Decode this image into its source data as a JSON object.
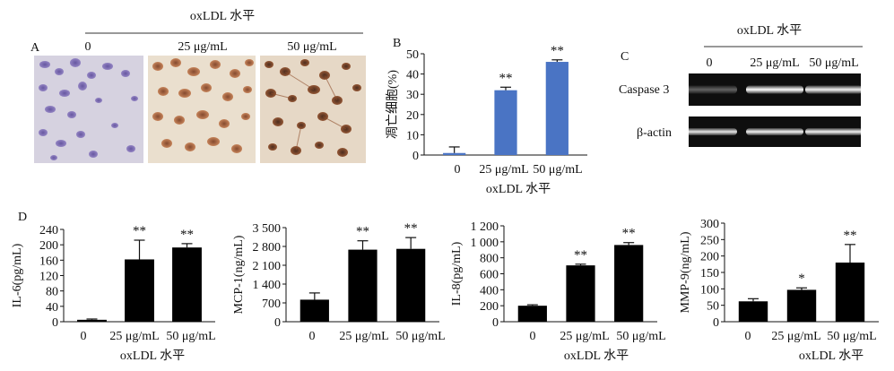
{
  "panel_a": {
    "label": "A",
    "header": "oxLDL 水平",
    "columns": [
      "0",
      "25 μg/mL",
      "50 μg/mL"
    ]
  },
  "panel_c": {
    "label": "C",
    "header": "oxLDL 水平",
    "columns": [
      "0",
      "25 μg/mL",
      "50 μg/mL"
    ],
    "rows": [
      "Caspase 3",
      "β-actin"
    ],
    "band_intensity": {
      "Caspase 3": [
        0.35,
        1.0,
        0.95
      ],
      "β-actin": [
        0.9,
        0.95,
        0.95
      ]
    }
  },
  "panel_d_label": "D",
  "chart_data": [
    {
      "id": "B",
      "panel_label": "B",
      "type": "bar",
      "style": "blue",
      "categories": [
        "0",
        "25 μg/mL",
        "50 μg/mL"
      ],
      "values": [
        1,
        32,
        46
      ],
      "errors": [
        3,
        1.5,
        1
      ],
      "significance": [
        "",
        "**",
        "**"
      ],
      "ylabel": "凋亡细胞(%)",
      "xlabel": "oxLDL 水平",
      "ylim": [
        0,
        50
      ],
      "yticks": [
        "0",
        "10",
        "20",
        "30",
        "40",
        "50"
      ],
      "color": "#4a74c4"
    },
    {
      "id": "IL6",
      "type": "bar",
      "style": "black",
      "categories": [
        "0",
        "25 μg/mL",
        "50 μg/mL"
      ],
      "values": [
        5,
        162,
        193
      ],
      "errors": [
        2,
        50,
        10
      ],
      "significance": [
        "",
        "**",
        "**"
      ],
      "ylabel": "IL-6(pg/mL)",
      "xlabel": "oxLDL 水平",
      "ylim": [
        0,
        240
      ],
      "yticks": [
        "0",
        "40",
        "80",
        "120",
        "160",
        "200",
        "240"
      ],
      "color": "#000000"
    },
    {
      "id": "MCP1",
      "type": "bar",
      "style": "black",
      "categories": [
        "0",
        "25 μg/mL",
        "50 μg/mL"
      ],
      "values": [
        820,
        2680,
        2710
      ],
      "errors": [
        250,
        330,
        420
      ],
      "significance": [
        "",
        "**",
        "**"
      ],
      "ylabel": "MCP-1(ng/mL)",
      "xlabel": "",
      "ylim": [
        0,
        3500
      ],
      "yticks": [
        "0",
        "700",
        "1 400",
        "2 100",
        "2 800",
        "3 500"
      ],
      "color": "#000000"
    },
    {
      "id": "IL8",
      "type": "bar",
      "style": "black",
      "categories": [
        "0",
        "25 μg/mL",
        "50 μg/mL"
      ],
      "values": [
        200,
        705,
        960
      ],
      "errors": [
        12,
        15,
        30
      ],
      "significance": [
        "",
        "**",
        "**"
      ],
      "ylabel": "IL-8(pg/mL)",
      "xlabel": "oxLDL 水平",
      "ylim": [
        0,
        1200
      ],
      "yticks": [
        "0",
        "200",
        "400",
        "600",
        "800",
        "1 000",
        "1 200"
      ],
      "color": "#000000"
    },
    {
      "id": "MMP9",
      "type": "bar",
      "style": "black",
      "categories": [
        "0",
        "25 μg/mL",
        "50 μg/mL"
      ],
      "values": [
        62,
        97,
        180
      ],
      "errors": [
        8,
        6,
        55
      ],
      "significance": [
        "",
        "*",
        "**"
      ],
      "ylabel": "MMP-9(ng/mL)",
      "xlabel": "oxLDL 水平",
      "ylim": [
        0,
        300
      ],
      "yticks": [
        "0",
        "50",
        "100",
        "150",
        "200",
        "250",
        "300"
      ],
      "color": "#000000"
    }
  ]
}
